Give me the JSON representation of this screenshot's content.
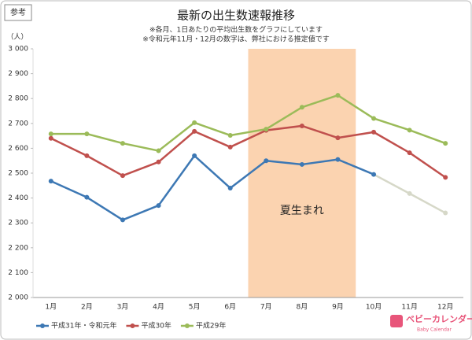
{
  "tag": "参考",
  "logo": {
    "name": "ベビーカレンダー",
    "sub": "Baby Calendar"
  },
  "chart_data": {
    "type": "line",
    "title": "最新の出生数速報推移",
    "notes": [
      "※各月、1日あたりの平均出生数をグラフにしています",
      "※令和元年11月・12月の数字は、弊社における推定値です"
    ],
    "y_unit": "（人）",
    "categories": [
      "1月",
      "2月",
      "3月",
      "4月",
      "5月",
      "6月",
      "7月",
      "8月",
      "9月",
      "10月",
      "11月",
      "12月"
    ],
    "series": [
      {
        "name": "平成31年・令和元年",
        "color": "#3d78b4",
        "values": [
          2468,
          2403,
          2312,
          2370,
          2570,
          2440,
          2550,
          2535,
          2555,
          2495,
          2418,
          2340
        ],
        "point_colors": [
          "#3d78b4",
          "#3d78b4",
          "#3d78b4",
          "#3d78b4",
          "#3d78b4",
          "#3d78b4",
          "#3d78b4",
          "#3d78b4",
          "#3d78b4",
          "#3d78b4",
          "#d6d8c8",
          "#d6d8c8"
        ]
      },
      {
        "name": "平成30年",
        "color": "#c0504d",
        "values": [
          2640,
          2570,
          2490,
          2545,
          2668,
          2605,
          2672,
          2690,
          2642,
          2665,
          2582,
          2483
        ]
      },
      {
        "name": "平成29年",
        "color": "#9bbb59",
        "values": [
          2658,
          2658,
          2620,
          2590,
          2703,
          2652,
          2677,
          2765,
          2813,
          2720,
          2673,
          2620
        ]
      }
    ],
    "highlight": {
      "label": "夏生まれ",
      "from": "7月",
      "to": "9月",
      "color": "#fbd3b0"
    },
    "ylim": [
      2000,
      3000
    ],
    "yticks": [
      {
        "value": 2000,
        "label": "2 000"
      },
      {
        "value": 2100,
        "label": "2 100"
      },
      {
        "value": 2200,
        "label": "2 200"
      },
      {
        "value": 2300,
        "label": "2 300"
      },
      {
        "value": 2400,
        "label": "2 400"
      },
      {
        "value": 2500,
        "label": "2 500"
      },
      {
        "value": 2600,
        "label": "2 600"
      },
      {
        "value": 2700,
        "label": "2 700"
      },
      {
        "value": 2800,
        "label": "2 800"
      },
      {
        "value": 2900,
        "label": "2 900"
      },
      {
        "value": 3000,
        "label": "3 000"
      }
    ],
    "grid": false,
    "legend": "bottom-left"
  }
}
